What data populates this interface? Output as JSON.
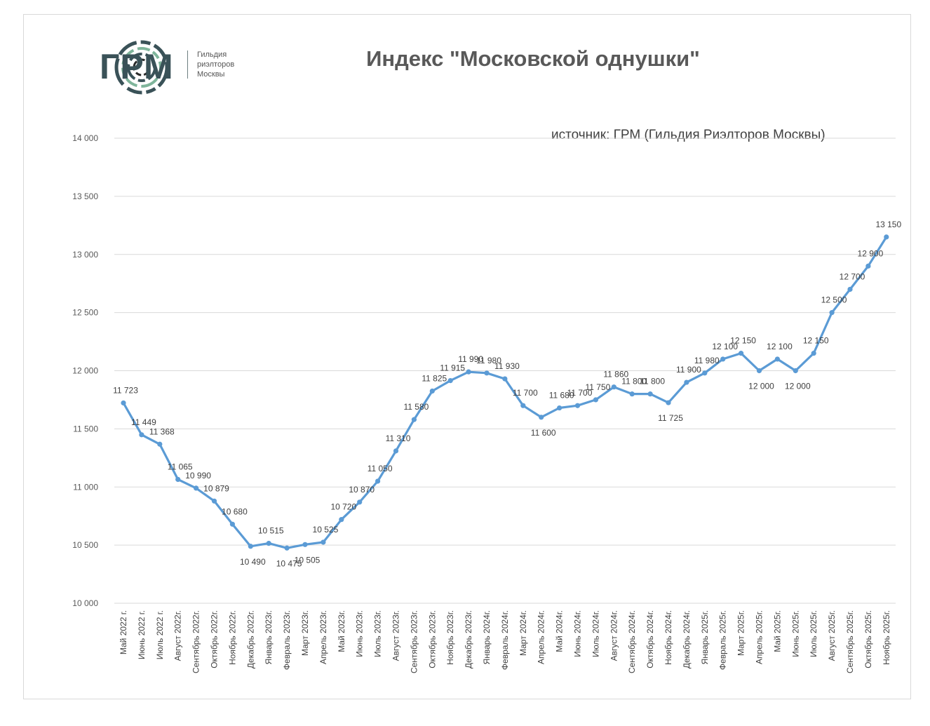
{
  "logo": {
    "brand": "ГРМ",
    "subtitle_lines": [
      "Гильдия",
      "риэлторов",
      "Москвы"
    ]
  },
  "colors": {
    "series_line": "#5b9bd5",
    "brand": "#3a5258",
    "grid": "#d9d9d9"
  },
  "chart_data": {
    "type": "line",
    "title": "Индекс \"Московской однушки\"",
    "source": "источник: ГРМ (Гильдия Риэлторов Москвы)",
    "xlabel": "",
    "ylabel": "",
    "ylim": [
      10000,
      14000
    ],
    "y_ticks": [
      10000,
      10500,
      11000,
      11500,
      12000,
      12500,
      13000,
      13500,
      14000
    ],
    "y_tick_labels": [
      "10 000",
      "10 500",
      "11 000",
      "11 500",
      "12 000",
      "12 500",
      "13 000",
      "13 500",
      "14 000"
    ],
    "grid": true,
    "legend": false,
    "categories": [
      "Май 2022 г.",
      "Июнь 2022 г.",
      "Июль 2022 г.",
      "Август 2022г.",
      "Сентябрь 2022г.",
      "Октябрь 2022г.",
      "Ноябрь 2022г.",
      "Декабрь 2022г.",
      "Январь 2023г.",
      "Февраль 2023г.",
      "Март 2023г.",
      "Апрель 2023г.",
      "Май 2023г.",
      "Июнь 2023г.",
      "Июль 2023г.",
      "Август 2023г.",
      "Сентябрь 2023г.",
      "Октябрь 2023г.",
      "Ноябрь 2023г.",
      "Декабрь 2023г.",
      "Январь 2024г.",
      "Февраль 2024г.",
      "Март 2024г.",
      "Апрель 2024г.",
      "Май 2024г.",
      "Июнь 2024г.",
      "Июль 2024г.",
      "Август 2024г.",
      "Сентябрь 2024г.",
      "Октябрь 2024г.",
      "Ноябрь 2024г.",
      "Декабрь 2024г.",
      "Январь 2025г.",
      "Февраль 2025г.",
      "Март 2025г.",
      "Апрель 2025г.",
      "Май 2025г.",
      "Июнь 2025г.",
      "Июль 2025г.",
      "Август  2025г.",
      "Сентябрь 2025г.",
      "Октябрь 2025г.",
      "Ноябрь 2025г."
    ],
    "values": [
      11723,
      11449,
      11368,
      11065,
      10990,
      10879,
      10680,
      10490,
      10515,
      10475,
      10505,
      10525,
      10720,
      10870,
      11050,
      11310,
      11580,
      11825,
      11915,
      11990,
      11980,
      11930,
      11700,
      11600,
      11680,
      11700,
      11750,
      11860,
      11800,
      11800,
      11725,
      11900,
      11980,
      12100,
      12150,
      12000,
      12100,
      12000,
      12150,
      12500,
      12700,
      12900,
      13150
    ],
    "value_labels": [
      "11 723",
      "11 449",
      "11 368",
      "11 065",
      "10 990",
      "10 879",
      "10 680",
      "10 490",
      "10 515",
      "10 475",
      "10 505",
      "10 525",
      "10 720",
      "10 870",
      "11 050",
      "11 310",
      "11 580",
      "11 825",
      "11 915",
      "11 990",
      "11 980",
      "11 930",
      "11 700",
      "11 600",
      "11 680",
      "11 700",
      "11 750",
      "11 860",
      "11 800",
      "11 800",
      "11 725",
      "11 900",
      "11 980",
      "12 100",
      "12 150",
      "12 000",
      "12 100",
      "12 000",
      "12 150",
      "12 500",
      "12 700",
      "12 900",
      "13 150"
    ]
  }
}
